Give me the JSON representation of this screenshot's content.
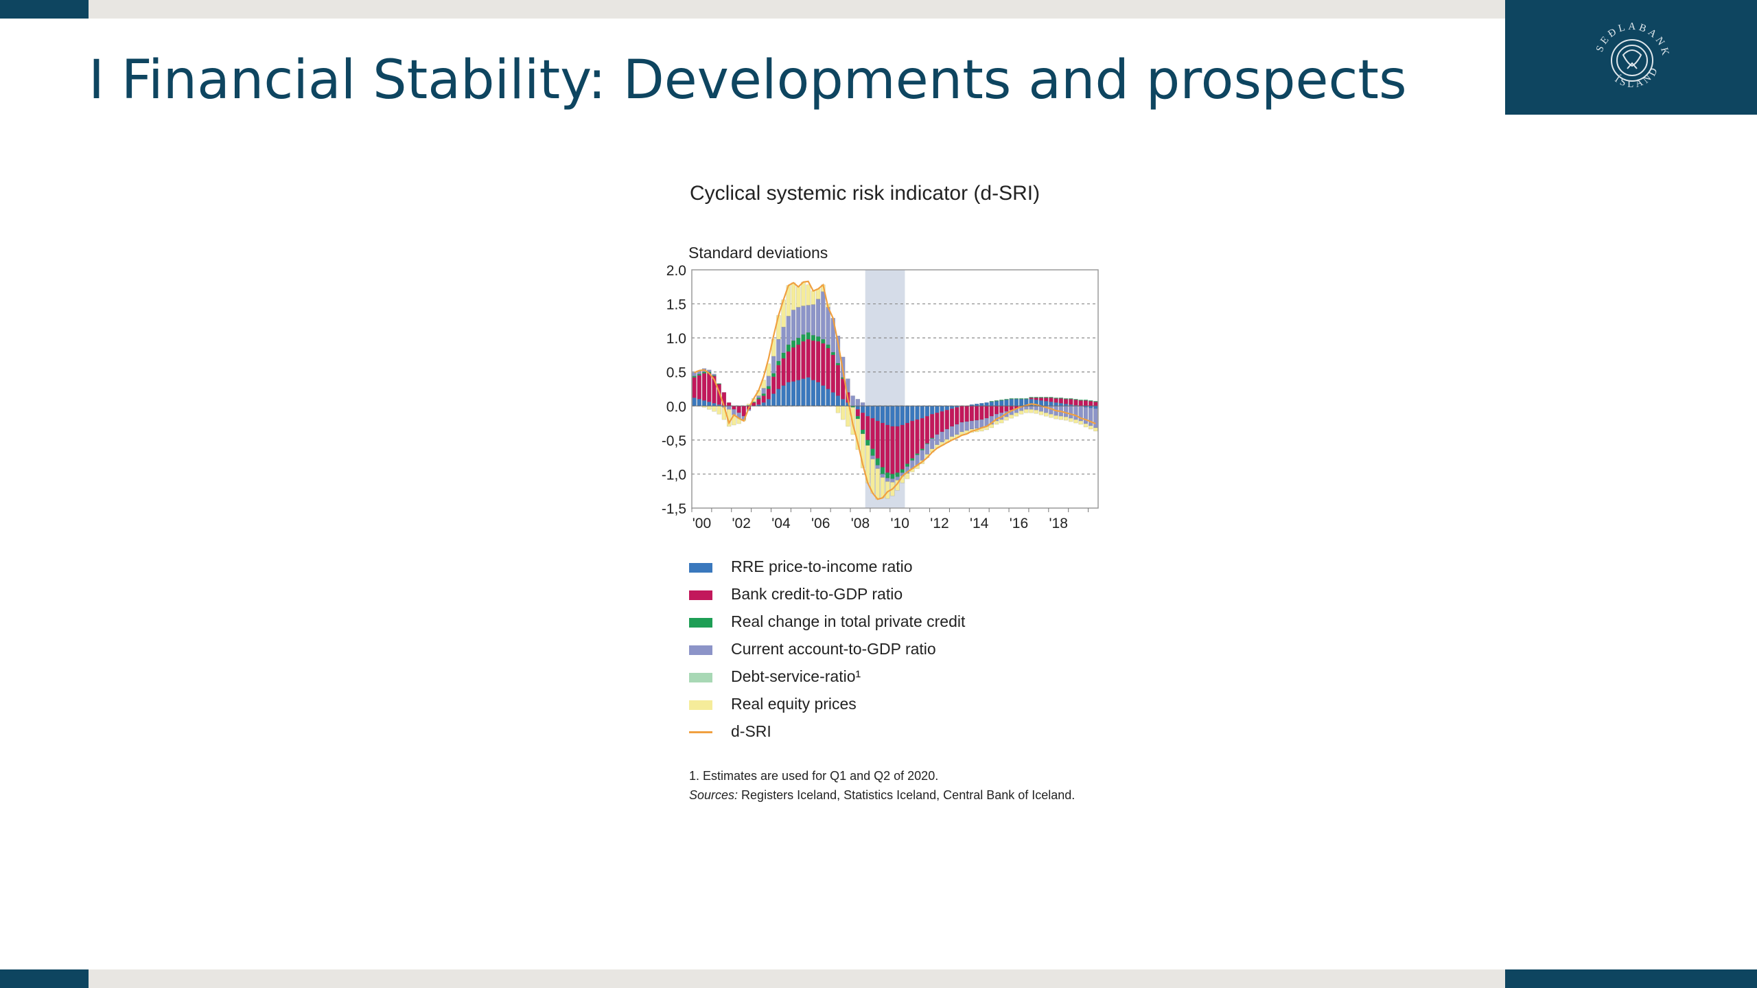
{
  "slide": {
    "title": "I Financial Stability: Developments and prospects",
    "logo_text": "SEÐLABANKI ÍSLANDS"
  },
  "colors": {
    "brand": "#0e4560",
    "bar_gray": "#e8e6e2"
  },
  "chart_data": {
    "type": "bar",
    "stacked": true,
    "title": "Cyclical systemic risk indicator (d-SRI)",
    "ylabel": "Standard deviations",
    "ylim": [
      -1.5,
      2.0
    ],
    "yticks": [
      "2.0",
      "1.5",
      "1.0",
      "0.5",
      "0.0",
      "-0,5",
      "-1,0",
      "-1,5"
    ],
    "yticks_values": [
      2.0,
      1.5,
      1.0,
      0.5,
      0.0,
      -0.5,
      -1.0,
      -1.5
    ],
    "xlim": [
      2000,
      2020.5
    ],
    "xticks": [
      "'00",
      "'02",
      "'04",
      "'06",
      "'08",
      "'10",
      "'12",
      "'14",
      "'16",
      "'18"
    ],
    "xticks_values": [
      2000,
      2002,
      2004,
      2006,
      2008,
      2010,
      2012,
      2014,
      2016,
      2018
    ],
    "shaded_region": [
      2008.75,
      2010.75
    ],
    "grid": "horizontal dashed",
    "frequency": "quarterly",
    "x_start": "2000Q1",
    "x_end": "2020Q2",
    "series": [
      {
        "name": "RRE price-to-income ratio",
        "color": "#3a78bd",
        "values": [
          0.12,
          0.1,
          0.08,
          0.06,
          0.04,
          0.02,
          0.0,
          0.0,
          0.0,
          0.0,
          0.0,
          0.0,
          0.0,
          0.02,
          0.05,
          0.1,
          0.18,
          0.25,
          0.3,
          0.35,
          0.36,
          0.38,
          0.4,
          0.42,
          0.38,
          0.35,
          0.3,
          0.25,
          0.2,
          0.15,
          0.1,
          0.05,
          0.0,
          -0.05,
          -0.1,
          -0.15,
          -0.18,
          -0.22,
          -0.25,
          -0.28,
          -0.3,
          -0.3,
          -0.28,
          -0.25,
          -0.22,
          -0.2,
          -0.18,
          -0.15,
          -0.12,
          -0.1,
          -0.08,
          -0.06,
          -0.04,
          -0.02,
          0.0,
          0.0,
          0.02,
          0.03,
          0.04,
          0.05,
          0.06,
          0.07,
          0.08,
          0.09,
          0.1,
          0.1,
          0.1,
          0.1,
          0.1,
          0.09,
          0.08,
          0.07,
          0.06,
          0.05,
          0.04,
          0.03,
          0.02,
          0.01,
          0.0,
          -0.02,
          -0.03,
          -0.04
        ]
      },
      {
        "name": "Bank credit-to-GDP ratio",
        "color": "#c2185b",
        "values": [
          0.3,
          0.35,
          0.4,
          0.42,
          0.4,
          0.3,
          0.2,
          0.05,
          -0.05,
          -0.1,
          -0.15,
          -0.05,
          0.05,
          0.08,
          0.1,
          0.15,
          0.25,
          0.35,
          0.4,
          0.45,
          0.5,
          0.52,
          0.55,
          0.56,
          0.58,
          0.6,
          0.62,
          0.6,
          0.55,
          0.45,
          0.3,
          0.15,
          0.0,
          -0.1,
          -0.25,
          -0.35,
          -0.45,
          -0.55,
          -0.65,
          -0.7,
          -0.7,
          -0.68,
          -0.65,
          -0.6,
          -0.55,
          -0.5,
          -0.45,
          -0.4,
          -0.35,
          -0.32,
          -0.3,
          -0.28,
          -0.26,
          -0.25,
          -0.24,
          -0.23,
          -0.22,
          -0.21,
          -0.2,
          -0.18,
          -0.15,
          -0.12,
          -0.1,
          -0.08,
          -0.06,
          -0.04,
          -0.02,
          0.0,
          0.02,
          0.03,
          0.04,
          0.05,
          0.06,
          0.06,
          0.07,
          0.07,
          0.08,
          0.08,
          0.08,
          0.08,
          0.07,
          0.06
        ]
      },
      {
        "name": "Real change in total private credit",
        "color": "#1e9e55",
        "values": [
          0.02,
          0.02,
          0.02,
          0.02,
          0.01,
          0.01,
          0.0,
          0.0,
          0.0,
          0.0,
          0.0,
          0.01,
          0.01,
          0.02,
          0.03,
          0.04,
          0.05,
          0.06,
          0.08,
          0.1,
          0.1,
          0.1,
          0.1,
          0.1,
          0.08,
          0.07,
          0.06,
          0.05,
          0.04,
          0.03,
          0.02,
          0.0,
          -0.02,
          -0.04,
          -0.06,
          -0.08,
          -0.1,
          -0.1,
          -0.1,
          -0.08,
          -0.07,
          -0.06,
          -0.05,
          -0.04,
          -0.03,
          -0.02,
          -0.02,
          -0.01,
          -0.01,
          0.0,
          0.0,
          0.0,
          0.0,
          0.0,
          0.0,
          0.0,
          0.0,
          0.0,
          0.0,
          0.0,
          0.01,
          0.01,
          0.01,
          0.01,
          0.01,
          0.01,
          0.01,
          0.01,
          0.01,
          0.01,
          0.01,
          0.01,
          0.01,
          0.01,
          0.01,
          0.01,
          0.01,
          0.01,
          0.01,
          0.01,
          0.01,
          0.01
        ]
      },
      {
        "name": "Current account-to-GDP ratio",
        "color": "#8c94c8",
        "values": [
          0.05,
          0.05,
          0.05,
          0.03,
          0.02,
          0.0,
          -0.02,
          -0.05,
          -0.08,
          -0.08,
          -0.05,
          -0.02,
          0.0,
          0.03,
          0.08,
          0.15,
          0.25,
          0.32,
          0.38,
          0.42,
          0.45,
          0.45,
          0.42,
          0.4,
          0.45,
          0.55,
          0.7,
          0.55,
          0.5,
          0.4,
          0.3,
          0.2,
          0.15,
          0.1,
          0.05,
          0.0,
          -0.05,
          -0.05,
          -0.05,
          -0.05,
          -0.05,
          -0.05,
          -0.05,
          -0.1,
          -0.12,
          -0.15,
          -0.15,
          -0.15,
          -0.15,
          -0.15,
          -0.15,
          -0.15,
          -0.15,
          -0.15,
          -0.14,
          -0.13,
          -0.12,
          -0.12,
          -0.12,
          -0.12,
          -0.12,
          -0.1,
          -0.1,
          -0.08,
          -0.07,
          -0.06,
          -0.05,
          -0.05,
          -0.05,
          -0.06,
          -0.08,
          -0.1,
          -0.12,
          -0.14,
          -0.15,
          -0.16,
          -0.18,
          -0.2,
          -0.22,
          -0.24,
          -0.26,
          -0.28
        ]
      },
      {
        "name": "Debt-service-ratio¹",
        "color": "#a8d8b5",
        "values": [
          0.0,
          0.0,
          0.0,
          0.0,
          0.0,
          0.0,
          0.0,
          0.0,
          0.0,
          0.0,
          0.0,
          0.0,
          0.0,
          0.0,
          0.0,
          0.0,
          0.0,
          0.0,
          0.0,
          0.0,
          0.0,
          0.0,
          0.0,
          0.0,
          0.0,
          0.0,
          0.0,
          0.0,
          0.0,
          0.0,
          0.0,
          0.0,
          0.0,
          0.0,
          0.0,
          0.0,
          0.0,
          0.0,
          0.0,
          0.0,
          0.0,
          0.0,
          0.0,
          0.0,
          0.0,
          0.0,
          0.0,
          0.0,
          0.0,
          0.0,
          0.0,
          0.0,
          0.0,
          0.0,
          0.0,
          0.0,
          0.0,
          0.0,
          0.0,
          0.0,
          0.0,
          0.0,
          0.0,
          0.0,
          0.0,
          0.0,
          0.0,
          0.0,
          0.0,
          0.0,
          0.0,
          0.0,
          0.0,
          0.0,
          0.0,
          0.0,
          0.0,
          0.0,
          0.0,
          0.0,
          0.0,
          0.0
        ]
      },
      {
        "name": "Real equity prices",
        "color": "#f5ec9a",
        "values": [
          0.0,
          0.0,
          -0.02,
          -0.05,
          -0.08,
          -0.12,
          -0.18,
          -0.25,
          -0.15,
          -0.08,
          -0.02,
          0.02,
          0.05,
          0.08,
          0.12,
          0.18,
          0.25,
          0.35,
          0.4,
          0.45,
          0.4,
          0.3,
          0.35,
          0.3,
          0.2,
          0.15,
          0.1,
          0.05,
          0.0,
          -0.1,
          -0.2,
          -0.3,
          -0.4,
          -0.45,
          -0.5,
          -0.55,
          -0.5,
          -0.45,
          -0.3,
          -0.25,
          -0.2,
          -0.15,
          -0.1,
          -0.08,
          -0.05,
          -0.05,
          -0.05,
          -0.05,
          -0.05,
          -0.05,
          -0.05,
          -0.05,
          -0.05,
          -0.05,
          -0.05,
          -0.05,
          -0.05,
          -0.05,
          -0.05,
          -0.05,
          -0.05,
          -0.05,
          -0.05,
          -0.05,
          -0.05,
          -0.05,
          -0.05,
          -0.05,
          -0.05,
          -0.05,
          -0.05,
          -0.05,
          -0.05,
          -0.05,
          -0.05,
          -0.05,
          -0.05,
          -0.05,
          -0.05,
          -0.05,
          -0.05,
          -0.05
        ]
      }
    ],
    "line": {
      "name": "d-SRI",
      "color": "#f0a040",
      "values": [
        0.49,
        0.52,
        0.53,
        0.48,
        0.39,
        0.21,
        0.0,
        -0.25,
        -0.13,
        -0.18,
        -0.22,
        -0.03,
        0.11,
        0.23,
        0.43,
        0.7,
        1.03,
        1.33,
        1.56,
        1.77,
        1.81,
        1.75,
        1.82,
        1.83,
        1.69,
        1.72,
        1.78,
        1.45,
        1.29,
        0.93,
        0.52,
        0.1,
        -0.27,
        -0.54,
        -0.86,
        -1.13,
        -1.28,
        -1.37,
        -1.35,
        -1.26,
        -1.22,
        -1.14,
        -1.03,
        -0.97,
        -0.92,
        -0.87,
        -0.82,
        -0.76,
        -0.68,
        -0.62,
        -0.58,
        -0.54,
        -0.5,
        -0.47,
        -0.43,
        -0.41,
        -0.37,
        -0.35,
        -0.32,
        -0.3,
        -0.25,
        -0.19,
        -0.16,
        -0.11,
        -0.07,
        -0.04,
        -0.01,
        0.01,
        0.03,
        0.02,
        0.0,
        -0.02,
        -0.04,
        -0.07,
        -0.08,
        -0.1,
        -0.12,
        -0.14,
        -0.18,
        -0.2,
        -0.23,
        -0.26
      ]
    }
  },
  "legend": [
    {
      "label": "RRE price-to-income ratio",
      "color": "#3a78bd",
      "kind": "box"
    },
    {
      "label": "Bank credit-to-GDP ratio",
      "color": "#c2185b",
      "kind": "box"
    },
    {
      "label": "Real change in total private credit",
      "color": "#1e9e55",
      "kind": "box"
    },
    {
      "label": "Current account-to-GDP ratio",
      "color": "#8c94c8",
      "kind": "box"
    },
    {
      "label": "Debt-service-ratio¹",
      "color": "#a8d8b5",
      "kind": "box"
    },
    {
      "label": "Real equity prices",
      "color": "#f5ec9a",
      "kind": "box"
    },
    {
      "label": "d-SRI",
      "color": "#f0a040",
      "kind": "line"
    }
  ],
  "notes": {
    "footnote": "1. Estimates are used for Q1 and Q2 of 2020.",
    "sources_label": "Sources:",
    "sources_text": " Registers Iceland, Statistics Iceland, Central Bank of Iceland."
  }
}
